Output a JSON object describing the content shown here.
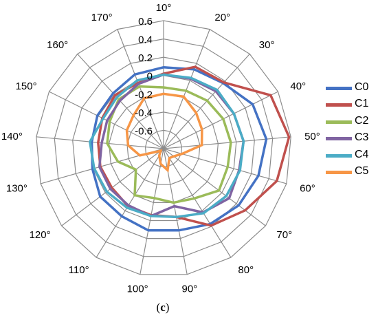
{
  "chart_data": {
    "type": "radar",
    "categories": [
      "10°",
      "20°",
      "30°",
      "40°",
      "50°",
      "60°",
      "70°",
      "80°",
      "90°",
      "100°",
      "110°",
      "120°",
      "130°",
      "140°",
      "150°",
      "160°",
      "170°"
    ],
    "radial_ticks": [
      "0.6",
      "0.4",
      "0.2",
      "0",
      "-0.2",
      "-0.4",
      "-0.6"
    ],
    "rlim": [
      -0.8,
      0.6
    ],
    "grid": true,
    "legend_position": "right",
    "series": [
      {
        "name": "C0",
        "color": "#4472C4",
        "values": [
          0.09,
          0.13,
          0.17,
          0.29,
          0.33,
          0.28,
          0.23,
          0.17,
          0.11,
          0.11,
          0.07,
          0.07,
          0.01,
          -0.01,
          0.01,
          0.02,
          0.07
        ]
      },
      {
        "name": "C1",
        "color": "#C0504D",
        "values": [
          0.02,
          0.16,
          0.18,
          0.51,
          0.58,
          0.49,
          0.32,
          0.19,
          -0.04,
          -0.06,
          -0.06,
          -0.09,
          -0.08,
          -0.08,
          -0.05,
          -0.01,
          -0.03
        ]
      },
      {
        "name": "C2",
        "color": "#9BBB59",
        "values": [
          -0.13,
          -0.12,
          -0.09,
          -0.07,
          -0.06,
          -0.07,
          -0.04,
          -0.16,
          -0.2,
          -0.25,
          -0.2,
          -0.42,
          -0.28,
          -0.18,
          -0.14,
          -0.07,
          -0.07
        ]
      },
      {
        "name": "C3",
        "color": "#8064A2",
        "values": [
          0.01,
          0.02,
          0.05,
          0.06,
          0.08,
          0.06,
          0.1,
          0.02,
          -0.16,
          -0.05,
          -0.07,
          -0.07,
          -0.07,
          -0.12,
          -0.11,
          -0.09,
          -0.04
        ]
      },
      {
        "name": "C4",
        "color": "#4BACC6",
        "values": [
          0.01,
          0.03,
          0.07,
          0.06,
          0.08,
          0.07,
          0.06,
          0.03,
          -0.04,
          -0.05,
          -0.04,
          -0.02,
          -0.01,
          0.01,
          -0.06,
          -0.04,
          0.0
        ]
      },
      {
        "name": "C5",
        "color": "#F79646",
        "values": [
          -0.2,
          -0.19,
          -0.27,
          -0.33,
          -0.38,
          -0.59,
          -0.66,
          -0.68,
          -0.56,
          -0.63,
          -0.71,
          -0.76,
          -0.53,
          -0.41,
          -0.35,
          -0.31,
          -0.21
        ]
      }
    ]
  },
  "caption": {
    "open": "(",
    "letter": "c",
    "close": ")"
  }
}
